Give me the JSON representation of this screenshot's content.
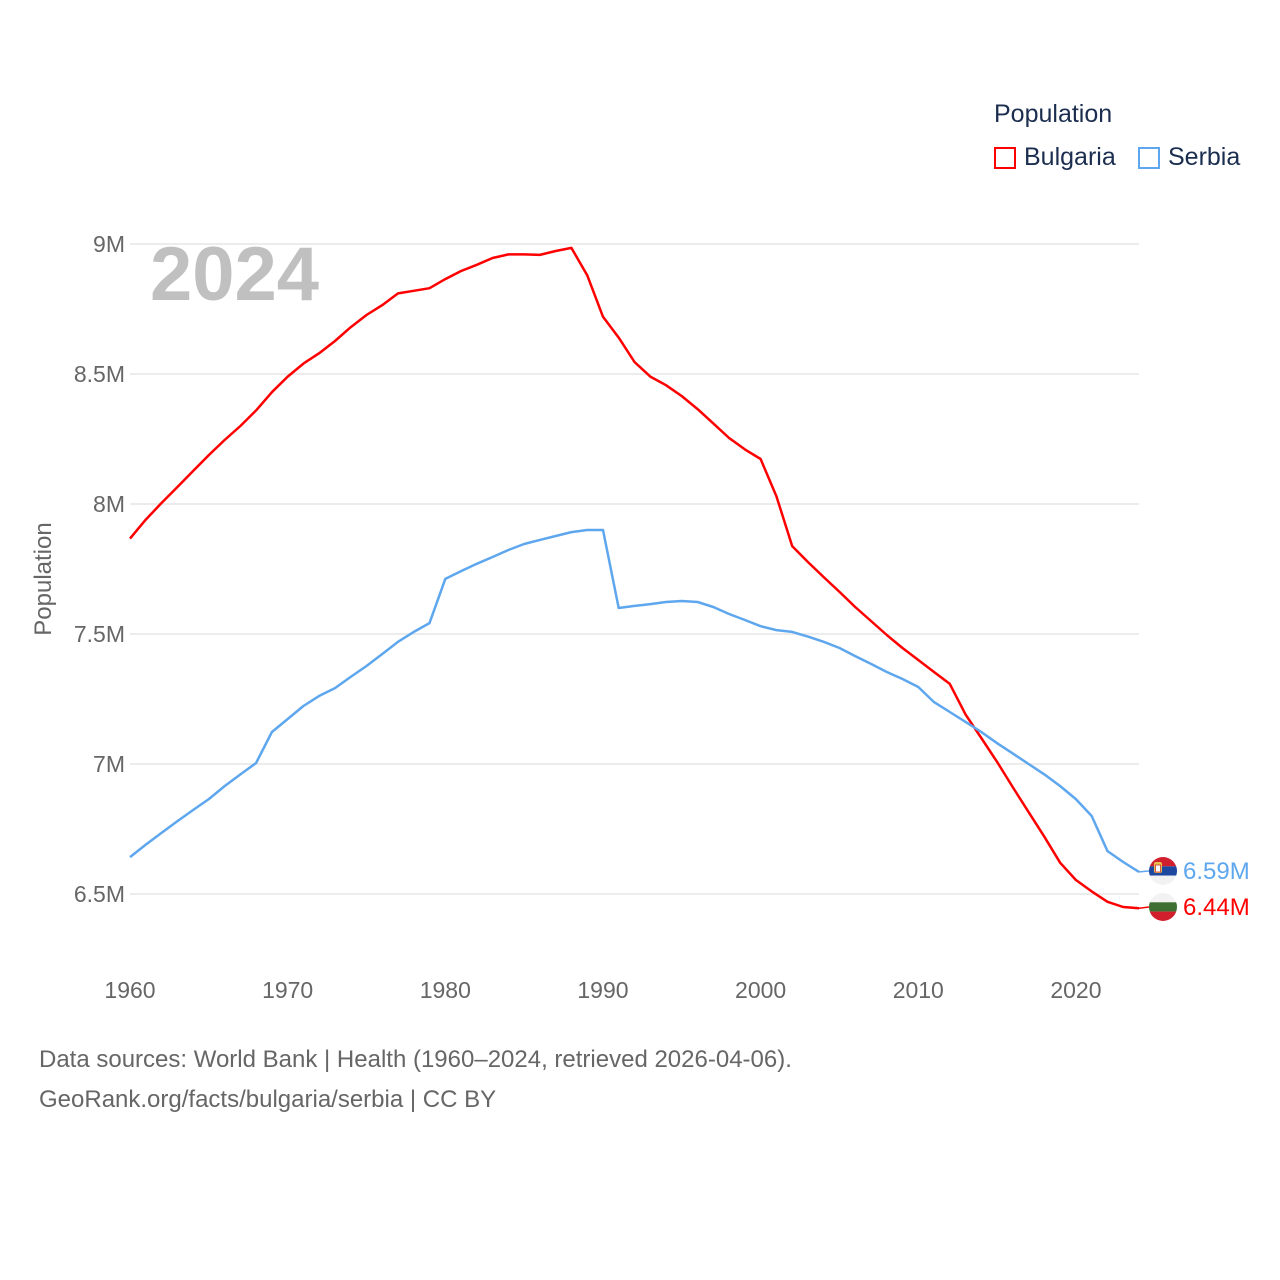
{
  "chart_data": {
    "type": "line",
    "title": "Population",
    "year_label": "2024",
    "xlabel": "",
    "ylabel": "Population",
    "xlim": [
      1960,
      2024
    ],
    "ylim": [
      6.5,
      9.0
    ],
    "x_ticks": [
      "1960",
      "1970",
      "1980",
      "1990",
      "2000",
      "2010",
      "2020"
    ],
    "y_ticks": [
      {
        "value": 6.5,
        "label": "6.5M"
      },
      {
        "value": 7.0,
        "label": "7M"
      },
      {
        "value": 7.5,
        "label": "7.5M"
      },
      {
        "value": 8.0,
        "label": "8M"
      },
      {
        "value": 8.5,
        "label": "8.5M"
      },
      {
        "value": 9.0,
        "label": "9M"
      }
    ],
    "grid": true,
    "legend_position": "top-right",
    "x": [
      1960,
      1961,
      1962,
      1963,
      1964,
      1965,
      1966,
      1967,
      1968,
      1969,
      1970,
      1971,
      1972,
      1973,
      1974,
      1975,
      1976,
      1977,
      1978,
      1979,
      1980,
      1981,
      1982,
      1983,
      1984,
      1985,
      1986,
      1987,
      1988,
      1989,
      1990,
      1991,
      1992,
      1993,
      1994,
      1995,
      1996,
      1997,
      1998,
      1999,
      2000,
      2001,
      2002,
      2003,
      2004,
      2005,
      2006,
      2007,
      2008,
      2009,
      2010,
      2011,
      2012,
      2013,
      2014,
      2015,
      2016,
      2017,
      2018,
      2019,
      2020,
      2021,
      2022,
      2023,
      2024
    ],
    "series": [
      {
        "name": "Bulgaria",
        "color": "#ff0000",
        "end_label": "6.44M",
        "flag": "bulgaria-flag",
        "values": [
          7.867,
          7.94,
          8.004,
          8.065,
          8.127,
          8.188,
          8.246,
          8.3,
          8.36,
          8.43,
          8.49,
          8.54,
          8.58,
          8.627,
          8.68,
          8.727,
          8.765,
          8.81,
          8.82,
          8.83,
          8.865,
          8.896,
          8.92,
          8.946,
          8.96,
          8.96,
          8.958,
          8.973,
          8.985,
          8.88,
          8.72,
          8.64,
          8.546,
          8.49,
          8.457,
          8.415,
          8.365,
          8.31,
          8.254,
          8.21,
          8.173,
          8.03,
          7.838,
          7.777,
          7.719,
          7.662,
          7.604,
          7.55,
          7.496,
          7.446,
          7.4,
          7.354,
          7.308,
          7.19,
          7.1,
          7.008,
          6.91,
          6.815,
          6.72,
          6.62,
          6.554,
          6.51,
          6.47,
          6.45,
          6.445
        ]
      },
      {
        "name": "Serbia",
        "color": "#5ea7ee",
        "end_label": "6.59M",
        "flag": "serbia-flag",
        "values": [
          6.642,
          6.69,
          6.735,
          6.78,
          6.823,
          6.865,
          6.915,
          6.96,
          7.004,
          7.123,
          7.173,
          7.223,
          7.262,
          7.292,
          7.335,
          7.377,
          7.423,
          7.47,
          7.508,
          7.542,
          7.712,
          7.742,
          7.77,
          7.796,
          7.823,
          7.846,
          7.862,
          7.877,
          7.892,
          7.9,
          7.9,
          7.6,
          7.608,
          7.615,
          7.623,
          7.627,
          7.623,
          7.604,
          7.577,
          7.554,
          7.53,
          7.515,
          7.508,
          7.49,
          7.47,
          7.446,
          7.415,
          7.385,
          7.354,
          7.327,
          7.296,
          7.238,
          7.2,
          7.162,
          7.123,
          7.08,
          7.04,
          7.0,
          6.96,
          6.915,
          6.865,
          6.8,
          6.665,
          6.623,
          6.585
        ]
      }
    ]
  },
  "footer": {
    "line1": "Data sources: World Bank | Health (1960–2024, retrieved 2026-04-06).",
    "line2": "GeoRank.org/facts/bulgaria/serbia | CC BY"
  }
}
